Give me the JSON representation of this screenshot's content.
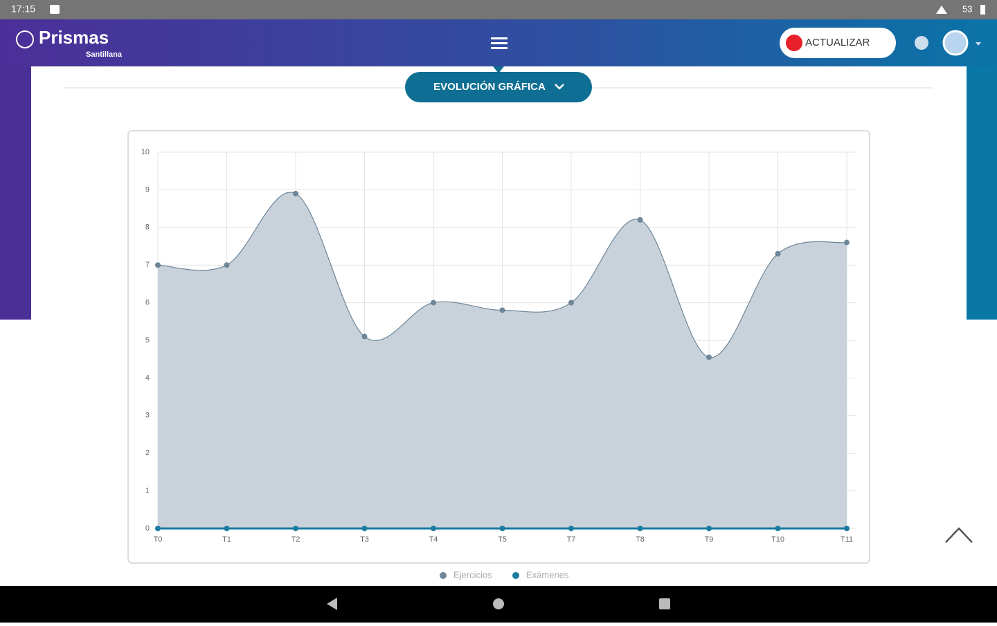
{
  "status_bar": {
    "time": "17:15",
    "battery": "53"
  },
  "header": {
    "brand": "Prismas",
    "sub_brand": "Santillana",
    "update_button": "ACTUALIZAR"
  },
  "section_button": "EVOLUCIÓN GRÁFICA",
  "chart_data": {
    "type": "area",
    "categories": [
      "T0",
      "T1",
      "T2",
      "T3",
      "T4",
      "T5",
      "T7",
      "T8",
      "T9",
      "T10",
      "T11"
    ],
    "series": [
      {
        "name": "Ejercicios",
        "color": "#6e8698",
        "values": [
          7,
          7,
          8.9,
          5.1,
          6,
          5.8,
          6,
          8.2,
          4.55,
          7.3,
          7.6
        ]
      },
      {
        "name": "Exámenes",
        "color": "#1a7aa0",
        "values": [
          0,
          0,
          0,
          0,
          0,
          0,
          0,
          0,
          0,
          0,
          0
        ]
      }
    ],
    "ylim": [
      0,
      10
    ],
    "yticks": [
      0,
      1,
      2,
      3,
      4,
      5,
      6,
      7,
      8,
      9,
      10
    ],
    "grid": true
  }
}
